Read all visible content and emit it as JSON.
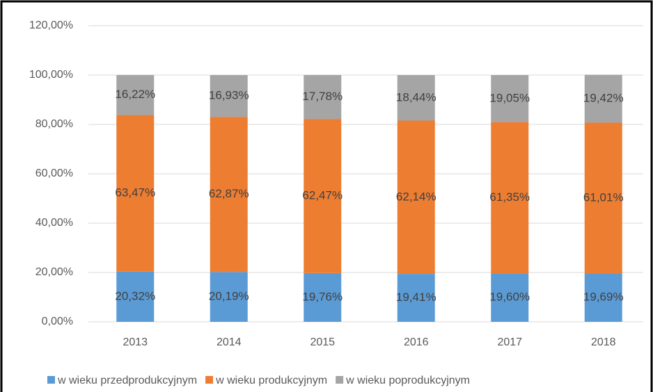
{
  "chart_data": {
    "type": "stacked_bar",
    "categories": [
      "2013",
      "2014",
      "2015",
      "2016",
      "2017",
      "2018"
    ],
    "series": [
      {
        "name": "w wieku przedprodukcyjnym",
        "color": "#5b9bd5",
        "values": [
          20.32,
          20.19,
          19.76,
          19.41,
          19.6,
          19.69
        ],
        "value_labels": [
          "20,32%",
          "20,19%",
          "19,76%",
          "19,41%",
          "19,60%",
          "19,69%"
        ]
      },
      {
        "name": "w wieku produkcyjnym",
        "color": "#ed7d31",
        "values": [
          63.47,
          62.87,
          62.47,
          62.14,
          61.35,
          61.01
        ],
        "value_labels": [
          "63,47%",
          "62,87%",
          "62,47%",
          "62,14%",
          "61,35%",
          "61,01%"
        ]
      },
      {
        "name": "w wieku poprodukcyjnym",
        "color": "#a5a5a5",
        "values": [
          16.22,
          16.93,
          17.78,
          18.44,
          19.05,
          19.42
        ],
        "value_labels": [
          "16,22%",
          "16,93%",
          "17,78%",
          "18,44%",
          "19,05%",
          "19,42%"
        ]
      }
    ],
    "ylim": [
      0,
      120
    ],
    "yticks": [
      {
        "value": 0,
        "label": "0,00%"
      },
      {
        "value": 20,
        "label": "20,00%"
      },
      {
        "value": 40,
        "label": "40,00%"
      },
      {
        "value": 60,
        "label": "60,00%"
      },
      {
        "value": 80,
        "label": "80,00%"
      },
      {
        "value": 100,
        "label": "100,00%"
      },
      {
        "value": 120,
        "label": "120,00%"
      }
    ],
    "grid": true,
    "legend": "bottom"
  }
}
